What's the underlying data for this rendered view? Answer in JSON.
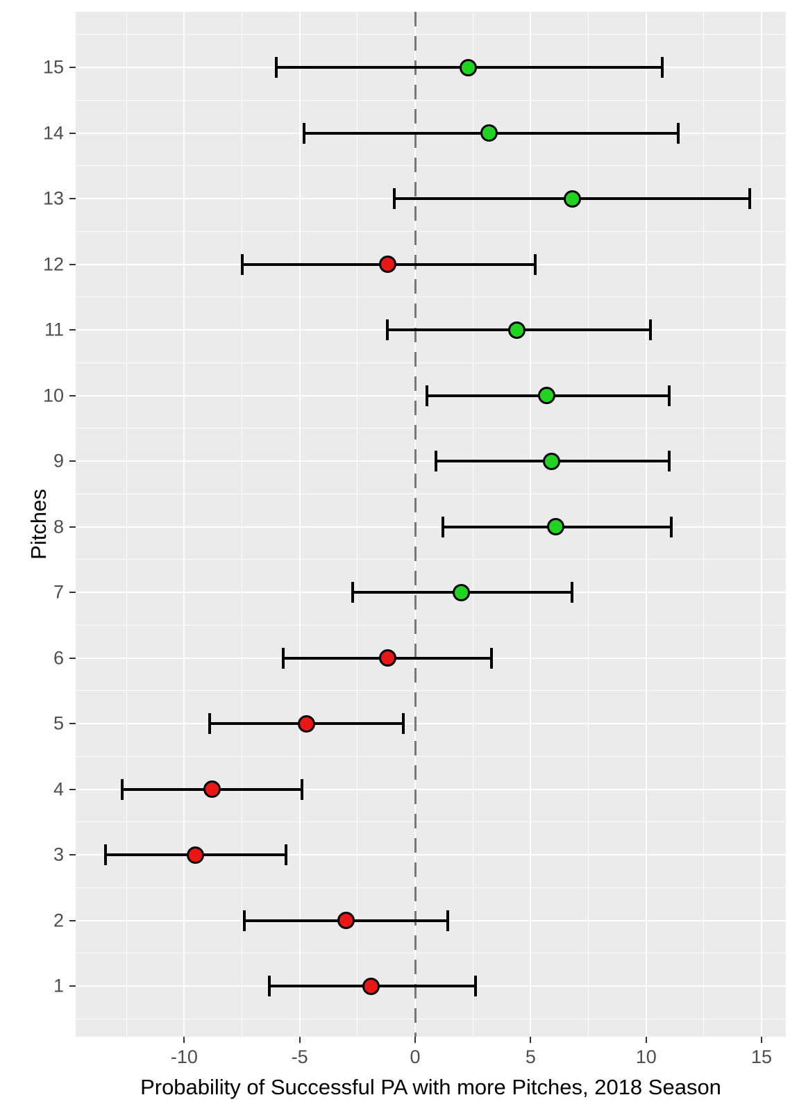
{
  "chart_data": {
    "type": "scatter",
    "title": "",
    "xlabel": "Probability of Successful PA with more Pitches, 2018 Season",
    "ylabel": "Pitches",
    "xlim": [
      -14.7,
      16.05
    ],
    "x_ticks": [
      -10,
      -5,
      0,
      5,
      10,
      15
    ],
    "x_minor_ticks": [
      -12.5,
      -7.5,
      -2.5,
      2.5,
      7.5,
      12.5
    ],
    "y_categories": [
      1,
      2,
      3,
      4,
      5,
      6,
      7,
      8,
      9,
      10,
      11,
      12,
      13,
      14,
      15
    ],
    "grid": "on",
    "legend": "none",
    "reference_line_x": 0,
    "points": [
      {
        "pitch": 1,
        "estimate": -1.9,
        "ci_low": -6.3,
        "ci_high": 2.6,
        "group": "negative"
      },
      {
        "pitch": 2,
        "estimate": -3.0,
        "ci_low": -7.4,
        "ci_high": 1.4,
        "group": "negative"
      },
      {
        "pitch": 3,
        "estimate": -9.5,
        "ci_low": -13.4,
        "ci_high": -5.6,
        "group": "negative"
      },
      {
        "pitch": 4,
        "estimate": -8.8,
        "ci_low": -12.7,
        "ci_high": -4.9,
        "group": "negative"
      },
      {
        "pitch": 5,
        "estimate": -4.7,
        "ci_low": -8.9,
        "ci_high": -0.5,
        "group": "negative"
      },
      {
        "pitch": 6,
        "estimate": -1.2,
        "ci_low": -5.7,
        "ci_high": 3.3,
        "group": "negative"
      },
      {
        "pitch": 7,
        "estimate": 2.0,
        "ci_low": -2.7,
        "ci_high": 6.8,
        "group": "positive"
      },
      {
        "pitch": 8,
        "estimate": 6.1,
        "ci_low": 1.2,
        "ci_high": 11.1,
        "group": "positive"
      },
      {
        "pitch": 9,
        "estimate": 5.9,
        "ci_low": 0.9,
        "ci_high": 11.0,
        "group": "positive"
      },
      {
        "pitch": 10,
        "estimate": 5.7,
        "ci_low": 0.5,
        "ci_high": 11.0,
        "group": "positive"
      },
      {
        "pitch": 11,
        "estimate": 4.4,
        "ci_low": -1.2,
        "ci_high": 10.2,
        "group": "positive"
      },
      {
        "pitch": 12,
        "estimate": -1.2,
        "ci_low": -7.5,
        "ci_high": 5.2,
        "group": "negative"
      },
      {
        "pitch": 13,
        "estimate": 6.8,
        "ci_low": -0.9,
        "ci_high": 14.5,
        "group": "positive"
      },
      {
        "pitch": 14,
        "estimate": 3.2,
        "ci_low": -4.8,
        "ci_high": 11.4,
        "group": "positive"
      },
      {
        "pitch": 15,
        "estimate": 2.3,
        "ci_low": -6.0,
        "ci_high": 10.7,
        "group": "positive"
      }
    ],
    "colors": {
      "positive": "#21D321",
      "negative": "#EA1717",
      "panel_background": "#EBEBEB",
      "gridline": "#FFFFFF",
      "reference_line": "#787878",
      "errorbar": "#000000",
      "axis_text": "#4D4D4D",
      "axis_title": "#000000"
    }
  }
}
